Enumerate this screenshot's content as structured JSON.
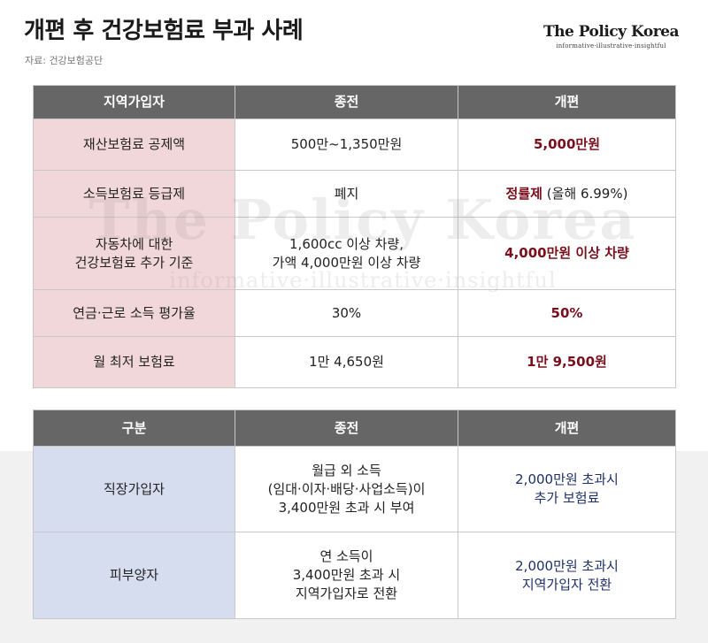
{
  "header": {
    "title": "개편 후 건강보험료 부과 사례",
    "source": "자료: 건강보험공단",
    "logo_name": "The Policy Korea",
    "logo_tagline": "informative·illustrative·insightful"
  },
  "watermark": {
    "name": "The Policy Korea",
    "tagline": "informative·illustrative·insightful"
  },
  "table1": {
    "headers": [
      "지역가입자",
      "종전",
      "개편"
    ],
    "rows": [
      {
        "label": "재산보험료 공제액",
        "before": "500만~1,350만원",
        "after": "5,000만원"
      },
      {
        "label": "소득보험료 등급제",
        "before": "폐지",
        "after_bold": "정률제",
        "after_note": " (올해 6.99%)"
      },
      {
        "label_lines": [
          "자동차에 대한",
          "건강보험료 추가 기준"
        ],
        "before_lines": [
          "1,600cc 이상 차량,",
          "가액 4,000만원 이상 차량"
        ],
        "after": "4,000만원 이상 차량"
      },
      {
        "label": "연금·근로 소득 평가율",
        "before": "30%",
        "after": "50%"
      },
      {
        "label": "월 최저 보험료",
        "before": "1만 4,650원",
        "after": "1만 9,500원"
      }
    ]
  },
  "table2": {
    "headers": [
      "구분",
      "종전",
      "개편"
    ],
    "rows": [
      {
        "label": "직장가입자",
        "before_lines": [
          "월급 외 소득",
          "(임대·이자·배당·사업소득)이",
          "3,400만원 초과 시 부여"
        ],
        "after_lines": [
          "2,000만원 초과시",
          "추가 보험료"
        ]
      },
      {
        "label": "피부양자",
        "before_lines": [
          "연 소득이",
          "3,400만원 초과 시",
          "지역가입자로 전환"
        ],
        "after_lines": [
          "2,000만원 초과시",
          "지역가입자 전환"
        ]
      }
    ]
  },
  "colors": {
    "header_bg": "#666666",
    "table1_label_bg": "#f2d7da",
    "table2_label_bg": "#d6ddef",
    "table1_highlight": "#7a0f1c",
    "table2_highlight": "#1d2f6b"
  }
}
